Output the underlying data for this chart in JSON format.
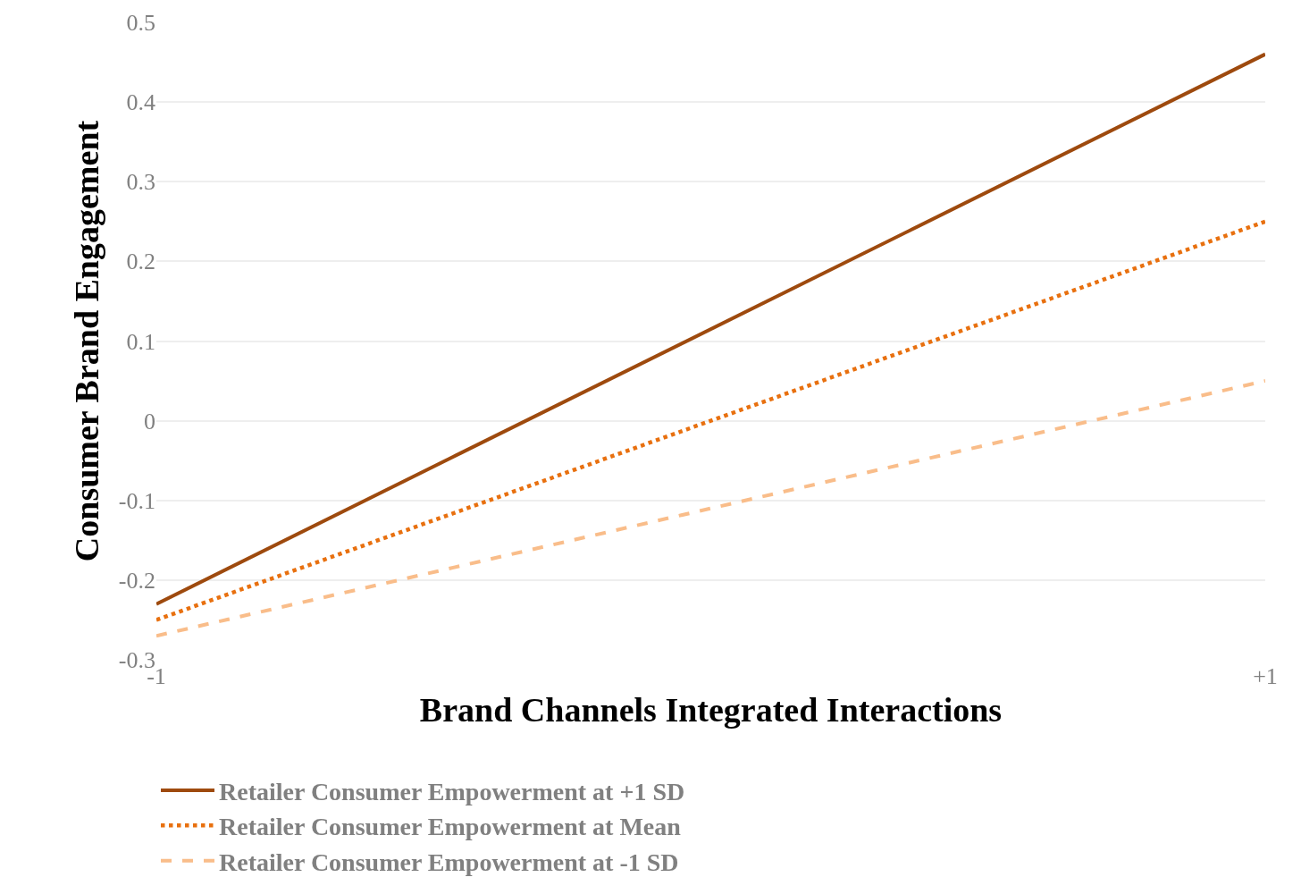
{
  "chart_data": {
    "type": "line",
    "xlabel": "Brand Channels Integrated Interactions",
    "ylabel": "Consumer Brand Engagement",
    "x": [
      -1,
      1
    ],
    "series": [
      {
        "name": "Retailer Consumer Empowerment at +1 SD",
        "color": "#9e4a0e",
        "values": [
          -0.23,
          0.46
        ],
        "line_style": "solid"
      },
      {
        "name": "Retailer Consumer Empowerment at Mean",
        "color": "#e8700f",
        "values": [
          -0.25,
          0.25
        ],
        "line_style": "dotted"
      },
      {
        "name": "Retailer Consumer Empowerment at -1 SD",
        "color": "#f9bd8a",
        "values": [
          -0.27,
          0.05
        ],
        "line_style": "dashed"
      }
    ],
    "xlim": [
      -1,
      1
    ],
    "xticks": [
      {
        "value": -1,
        "label": "-1"
      },
      {
        "value": 1,
        "label": "+1"
      }
    ],
    "ylim": [
      -0.3,
      0.5
    ],
    "yticks": [
      -0.3,
      -0.2,
      -0.1,
      0,
      0.1,
      0.2,
      0.3,
      0.4,
      0.5
    ],
    "grid": "y",
    "legend": "bottom",
    "marker": "none"
  }
}
